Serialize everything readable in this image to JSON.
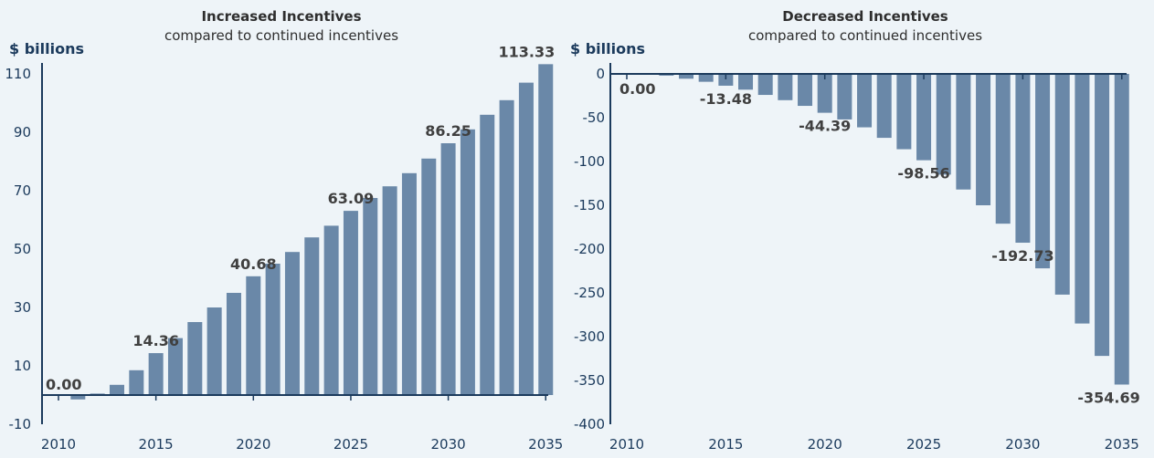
{
  "chart_data": [
    {
      "type": "bar",
      "title": "Increased Incentives",
      "subtitle": "compared to continued incentives",
      "ylabel": "$ billions",
      "ylim": [
        -10,
        110
      ],
      "yticks": [
        110,
        90,
        70,
        50,
        30,
        10,
        -10
      ],
      "x": [
        2010,
        2011,
        2012,
        2013,
        2014,
        2015,
        2016,
        2017,
        2018,
        2019,
        2020,
        2021,
        2022,
        2023,
        2024,
        2025,
        2026,
        2027,
        2028,
        2029,
        2030,
        2031,
        2032,
        2033,
        2034,
        2035
      ],
      "xticks": [
        2010,
        2015,
        2020,
        2025,
        2030,
        2035
      ],
      "values": [
        0.0,
        -1.5,
        0.5,
        3.5,
        8.5,
        14.36,
        19.5,
        25.0,
        30.0,
        35.0,
        40.68,
        45.0,
        49.0,
        54.0,
        58.0,
        63.09,
        67.5,
        71.5,
        76.0,
        81.0,
        86.25,
        91.0,
        96.0,
        101.0,
        107.0,
        113.33
      ],
      "data_labels": [
        {
          "year": 2010,
          "text": "0.00"
        },
        {
          "year": 2015,
          "text": "14.36"
        },
        {
          "year": 2020,
          "text": "40.68"
        },
        {
          "year": 2025,
          "text": "63.09"
        },
        {
          "year": 2030,
          "text": "86.25"
        },
        {
          "year": 2035,
          "text": "113.33"
        }
      ]
    },
    {
      "type": "bar",
      "title": "Decreased Incentives",
      "subtitle": "compared to continued incentives",
      "ylabel": "$ billions",
      "ylim": [
        -400,
        0
      ],
      "yticks": [
        0,
        -50,
        -100,
        -150,
        -200,
        -250,
        -300,
        -350,
        -400
      ],
      "x": [
        2010,
        2011,
        2012,
        2013,
        2014,
        2015,
        2016,
        2017,
        2018,
        2019,
        2020,
        2021,
        2022,
        2023,
        2024,
        2025,
        2026,
        2027,
        2028,
        2029,
        2030,
        2031,
        2032,
        2033,
        2034,
        2035
      ],
      "xticks": [
        2010,
        2015,
        2020,
        2025,
        2030,
        2035
      ],
      "values": [
        0.0,
        -0.5,
        -2.0,
        -5.5,
        -9.0,
        -13.48,
        -18.0,
        -24.0,
        -30.0,
        -36.5,
        -44.39,
        -52.0,
        -61.0,
        -73.0,
        -86.0,
        -98.56,
        -115.0,
        -132.0,
        -150.0,
        -171.0,
        -192.73,
        -222.0,
        -252.0,
        -285.0,
        -322.0,
        -354.69
      ],
      "data_labels": [
        {
          "year": 2010,
          "text": "0.00"
        },
        {
          "year": 2015,
          "text": "-13.48"
        },
        {
          "year": 2020,
          "text": "-44.39"
        },
        {
          "year": 2025,
          "text": "-98.56"
        },
        {
          "year": 2030,
          "text": "-192.73"
        },
        {
          "year": 2035,
          "text": "-354.69"
        }
      ]
    }
  ]
}
